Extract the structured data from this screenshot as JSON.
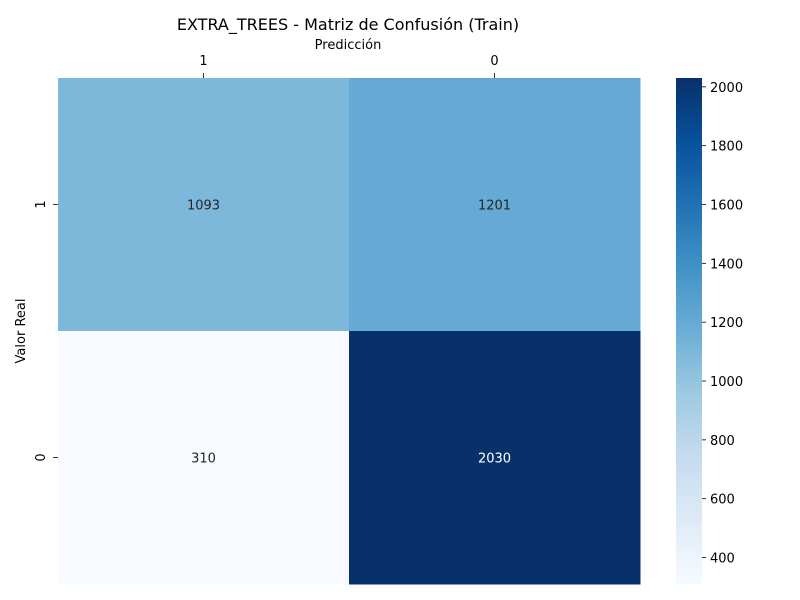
{
  "chart_data": {
    "type": "heatmap",
    "title": "EXTRA_TREES - Matriz de Confusión (Train)",
    "xlabel": "Predicción",
    "ylabel": "Valor Real",
    "x_categories": [
      "1",
      "0"
    ],
    "y_categories": [
      "1",
      "0"
    ],
    "values": [
      [
        1093,
        1201
      ],
      [
        310,
        2030
      ]
    ],
    "value_labels": [
      [
        "1093",
        "1201"
      ],
      [
        "310",
        "2030"
      ]
    ],
    "x_axis_position": "top",
    "colormap": "Blues",
    "vmin": 310,
    "vmax": 2030,
    "colorbar_ticks": [
      400,
      600,
      800,
      1000,
      1200,
      1400,
      1600,
      1800,
      2000
    ],
    "colorbar_tick_labels": [
      "400",
      "600",
      "800",
      "1000",
      "1200",
      "1400",
      "1600",
      "1800",
      "2000"
    ],
    "colors": {
      "low": "#f7fbff",
      "high": "#08306b",
      "text_dark": "#262626",
      "text_light": "#ffffff"
    }
  }
}
